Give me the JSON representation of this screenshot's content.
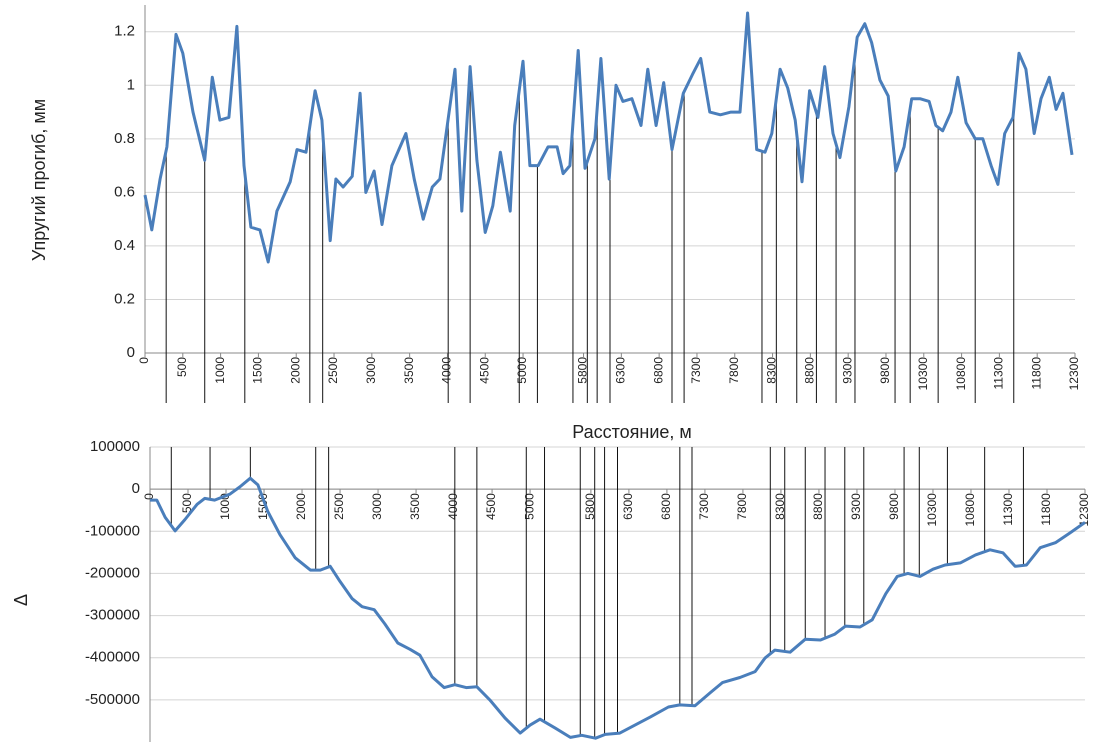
{
  "chart_data": [
    {
      "type": "line",
      "ylabel": "Упругий прогиб, мм",
      "xlabel": "Расстояние, м",
      "color": "#4a7ebb",
      "x": [
        0,
        90,
        200,
        290,
        410,
        500,
        635,
        790,
        890,
        990,
        1110,
        1215,
        1310,
        1400,
        1520,
        1630,
        1745,
        1920,
        2010,
        2130,
        2250,
        2340,
        2450,
        2525,
        2620,
        2740,
        2845,
        2920,
        3030,
        3135,
        3265,
        3450,
        3560,
        3680,
        3800,
        3900,
        4100,
        4190,
        4300,
        4390,
        4500,
        4600,
        4700,
        4830,
        4890,
        5000,
        5090,
        5200,
        5330,
        5450,
        5530,
        5620,
        5730,
        5820,
        5950,
        6030,
        6140,
        6230,
        6320,
        6440,
        6560,
        6650,
        6760,
        6860,
        6970,
        7120,
        7240,
        7350,
        7470,
        7610,
        7750,
        7870,
        7970,
        8090,
        8200,
        8290,
        8400,
        8500,
        8600,
        8690,
        8790,
        8900,
        8990,
        9100,
        9190,
        9310,
        9420,
        9520,
        9610,
        9720,
        9830,
        9930,
        10040,
        10140,
        10250,
        10370,
        10460,
        10550,
        10660,
        10750,
        10860,
        10980,
        11080,
        11190,
        11280,
        11370,
        11480,
        11560,
        11650,
        11760,
        11850,
        11960,
        12050,
        12140,
        12260
      ],
      "values": [
        0.59,
        0.46,
        0.65,
        0.77,
        1.19,
        1.12,
        0.9,
        0.72,
        1.03,
        0.87,
        0.88,
        1.22,
        0.7,
        0.47,
        0.46,
        0.34,
        0.53,
        0.64,
        0.76,
        0.75,
        0.98,
        0.87,
        0.42,
        0.65,
        0.62,
        0.66,
        0.97,
        0.6,
        0.68,
        0.48,
        0.7,
        0.82,
        0.65,
        0.5,
        0.62,
        0.65,
        1.06,
        0.53,
        1.07,
        0.72,
        0.45,
        0.55,
        0.75,
        0.53,
        0.85,
        1.09,
        0.7,
        0.7,
        0.77,
        0.77,
        0.67,
        0.7,
        1.13,
        0.69,
        0.8,
        1.1,
        0.65,
        1.0,
        0.94,
        0.95,
        0.85,
        1.06,
        0.85,
        1.01,
        0.76,
        0.97,
        1.04,
        1.1,
        0.9,
        0.89,
        0.9,
        0.9,
        1.27,
        0.76,
        0.75,
        0.82,
        1.06,
        0.99,
        0.87,
        0.64,
        0.98,
        0.88,
        1.07,
        0.82,
        0.73,
        0.92,
        1.18,
        1.23,
        1.16,
        1.02,
        0.96,
        0.68,
        0.77,
        0.95,
        0.95,
        0.94,
        0.85,
        0.83,
        0.9,
        1.03,
        0.86,
        0.8,
        0.8,
        0.7,
        0.63,
        0.82,
        0.88,
        1.12,
        1.06,
        0.82,
        0.95,
        1.03,
        0.91,
        0.97,
        0.74
      ],
      "boundaries": [
        280,
        790,
        1320,
        2180,
        2350,
        4010,
        4300,
        4950,
        5190,
        5660,
        5850,
        5980,
        6150,
        6970,
        7130,
        8160,
        8350,
        8620,
        8880,
        9140,
        9390,
        9920,
        10120,
        10490,
        10980,
        11490
      ],
      "xlim": [
        0,
        12300
      ],
      "ylim": [
        0,
        1.3
      ],
      "xticks": [
        0,
        500,
        1000,
        1500,
        2000,
        2500,
        3000,
        3500,
        4000,
        4500,
        5000,
        5800,
        6300,
        6800,
        7300,
        7800,
        8300,
        8800,
        9300,
        9800,
        10300,
        10800,
        11300,
        11800,
        12300
      ],
      "yticks": [
        0,
        0.2,
        0.4,
        0.6,
        0.8,
        1,
        1.2
      ],
      "grid": true
    },
    {
      "type": "line",
      "ylabel": "Δ",
      "color": "#4a7ebb",
      "x": [
        0,
        90,
        200,
        330,
        460,
        620,
        720,
        850,
        1050,
        1180,
        1320,
        1420,
        1550,
        1710,
        1910,
        2110,
        2240,
        2370,
        2500,
        2660,
        2790,
        2950,
        3090,
        3260,
        3420,
        3550,
        3710,
        3870,
        4010,
        4160,
        4300,
        4470,
        4670,
        4870,
        5000,
        5130,
        5330,
        5530,
        5680,
        5860,
        5990,
        6180,
        6380,
        6580,
        6820,
        6970,
        7170,
        7370,
        7530,
        7760,
        7960,
        8090,
        8220,
        8420,
        8620,
        8820,
        9010,
        9150,
        9340,
        9500,
        9680,
        9830,
        9970,
        10130,
        10300,
        10460,
        10660,
        10860,
        11050,
        11220,
        11380,
        11530,
        11710,
        11910,
        12110,
        12300
      ],
      "values": [
        -26000,
        -26000,
        -67000,
        -99000,
        -72000,
        -36000,
        -22000,
        -26000,
        -12000,
        5000,
        26000,
        10000,
        -53000,
        -108000,
        -163000,
        -192000,
        -192000,
        -183000,
        -219000,
        -260000,
        -279000,
        -286000,
        -320000,
        -365000,
        -380000,
        -394000,
        -445000,
        -471000,
        -464000,
        -471000,
        -469000,
        -500000,
        -543000,
        -579000,
        -560000,
        -546000,
        -567000,
        -589000,
        -584000,
        -591000,
        -582000,
        -579000,
        -560000,
        -541000,
        -517000,
        -512000,
        -514000,
        -483000,
        -459000,
        -447000,
        -433000,
        -401000,
        -382000,
        -387000,
        -356000,
        -358000,
        -344000,
        -325000,
        -327000,
        -310000,
        -248000,
        -207000,
        -200000,
        -207000,
        -190000,
        -180000,
        -175000,
        -156000,
        -144000,
        -151000,
        -183000,
        -180000,
        -139000,
        -127000,
        -103000,
        -79000
      ],
      "xlim": [
        0,
        12300
      ],
      "ylim": [
        -600000,
        100000
      ],
      "xticks": [
        0,
        500,
        1000,
        1500,
        2000,
        2500,
        3000,
        3500,
        4000,
        4500,
        5000,
        5800,
        6300,
        6800,
        7300,
        7800,
        8300,
        8800,
        9300,
        9800,
        10300,
        10800,
        11300,
        11800,
        12300
      ],
      "yticks": [
        100000,
        0,
        -100000,
        -200000,
        -300000,
        -400000,
        -500000
      ],
      "grid": true
    }
  ]
}
